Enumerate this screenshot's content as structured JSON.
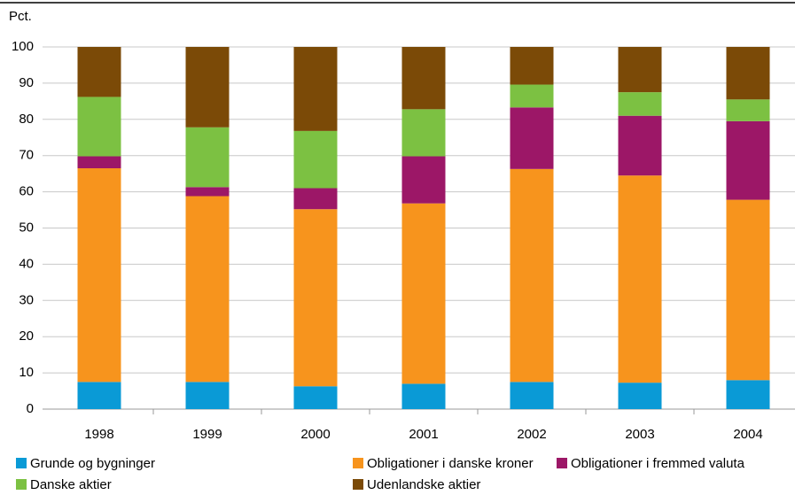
{
  "chart_data": {
    "type": "stacked_bar",
    "y_label": "Pct.",
    "categories": [
      "1998",
      "1999",
      "2000",
      "2001",
      "2002",
      "2003",
      "2004"
    ],
    "series": [
      {
        "name": "Grunde og bygninger",
        "color": "#0a9ad6",
        "values": [
          7.5,
          7.5,
          6.3,
          7.0,
          7.5,
          7.3,
          8.0
        ]
      },
      {
        "name": "Obligationer i danske kroner",
        "color": "#f7941d",
        "values": [
          59.0,
          51.3,
          48.9,
          49.8,
          58.8,
          57.2,
          49.8
        ]
      },
      {
        "name": "Obligationer i fremmed valuta",
        "color": "#9c1767",
        "values": [
          3.3,
          2.5,
          5.8,
          13.0,
          17.0,
          16.5,
          21.7
        ]
      },
      {
        "name": "Danske aktier",
        "color": "#7cc142",
        "values": [
          16.4,
          16.5,
          15.8,
          13.0,
          6.3,
          6.5,
          6.0
        ]
      },
      {
        "name": "Udenlandske aktier",
        "color": "#7b4a07",
        "values": [
          13.8,
          22.2,
          23.2,
          17.2,
          10.4,
          12.5,
          14.5
        ]
      }
    ],
    "ylim": [
      0,
      100
    ],
    "yticks": [
      0,
      10,
      20,
      30,
      40,
      50,
      60,
      70,
      80,
      90,
      100
    ],
    "grid": true
  }
}
